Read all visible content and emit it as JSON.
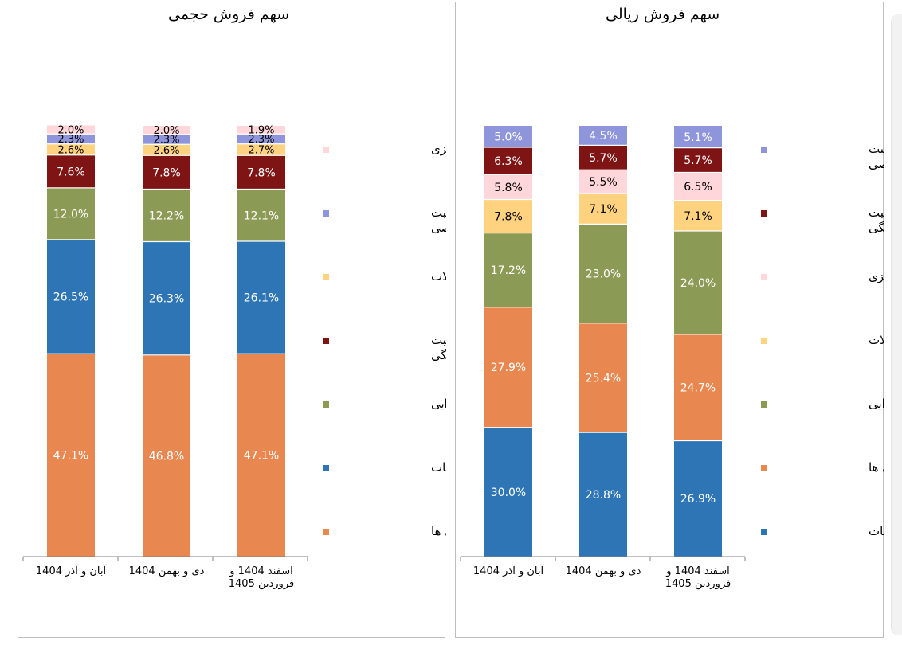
{
  "chart_data": [
    {
      "type": "bar",
      "stacked": true,
      "title": "سهم فروش حجمی",
      "categories": [
        "آبان و آذر 1404",
        "دی و بهمن 1404",
        "اسفند 1404 و فروردین 1405"
      ],
      "ylim": [
        0,
        100
      ],
      "grid": false,
      "legend_position": "right",
      "series": [
        {
          "name": "نوشیدنی ها",
          "color": "#E8874F",
          "values": [
            47.1,
            46.8,
            47.1
          ],
          "labels": [
            "47.1%",
            "46.8%",
            "47.1%"
          ]
        },
        {
          "name": "لبنیات",
          "color": "#2E75B6",
          "values": [
            26.5,
            26.3,
            26.1
          ],
          "labels": [
            "26.5%",
            "26.3%",
            "26.1%"
          ]
        },
        {
          "name": "مواد غذایی",
          "color": "#8B9B56",
          "values": [
            12.0,
            12.2,
            12.1
          ],
          "labels": [
            "12.0%",
            "12.2%",
            "12.1%"
          ]
        },
        {
          "name": "محصولات مراقبت خانگی",
          "color": "#7F1414",
          "values": [
            7.6,
            7.8,
            7.8
          ],
          "labels": [
            "7.6%",
            "7.8%",
            "7.8%"
          ]
        },
        {
          "name": "تنقلات",
          "color": "#FFD27F",
          "values": [
            2.6,
            2.6,
            2.7
          ],
          "labels": [
            "2.6%",
            "2.6%",
            "2.7%"
          ]
        },
        {
          "name": "محصولات مراقبت شخصی",
          "color": "#8E95DB",
          "values": [
            2.3,
            2.3,
            2.3
          ],
          "labels": [
            "2.3%",
            "2.3%",
            "2.3%"
          ]
        },
        {
          "name": "محصولات سلولزی",
          "color": "#FFD6D9",
          "values": [
            2.0,
            2.0,
            1.9
          ],
          "labels": [
            "2.0%",
            "2.0%",
            "1.9%"
          ]
        }
      ],
      "legend": [
        {
          "lines": [
            "محصولات سلولزی"
          ],
          "color": "#FFD6D9"
        },
        {
          "lines": [
            "محصولات مراقبت",
            "شخصی"
          ],
          "color": "#8E95DB"
        },
        {
          "lines": [
            "تنقلات"
          ],
          "color": "#FFD27F"
        },
        {
          "lines": [
            "محصولات مراقبت",
            "خانگی"
          ],
          "color": "#7F1414"
        },
        {
          "lines": [
            "مواد غذایی"
          ],
          "color": "#8B9B56"
        },
        {
          "lines": [
            "لبنیات"
          ],
          "color": "#2E75B6"
        },
        {
          "lines": [
            "نوشیدنی ها"
          ],
          "color": "#E8874F"
        }
      ]
    },
    {
      "type": "bar",
      "stacked": true,
      "title": "سهم فروش ریالی",
      "categories": [
        "آبان و آذر 1404",
        "دی و بهمن 1404",
        "اسفند 1404 و فروردین 1405"
      ],
      "ylim": [
        0,
        100
      ],
      "grid": false,
      "legend_position": "right",
      "series": [
        {
          "name": "لبنیات",
          "color": "#2E75B6",
          "values": [
            30.0,
            28.8,
            26.9
          ],
          "labels": [
            "30.0%",
            "28.8%",
            "26.9%"
          ]
        },
        {
          "name": "نوشیدنی ها",
          "color": "#E8874F",
          "values": [
            27.9,
            25.4,
            24.7
          ],
          "labels": [
            "27.9%",
            "25.4%",
            "24.7%"
          ]
        },
        {
          "name": "مواد غذایی",
          "color": "#8B9B56",
          "values": [
            17.2,
            23.0,
            24.0
          ],
          "labels": [
            "17.2%",
            "23.0%",
            "24.0%"
          ]
        },
        {
          "name": "تنقلات",
          "color": "#FFD27F",
          "values": [
            7.8,
            7.1,
            7.1
          ],
          "labels": [
            "7.8%",
            "7.1%",
            "7.1%"
          ]
        },
        {
          "name": "محصولات سلولزی",
          "color": "#FFD6D9",
          "values": [
            5.8,
            5.5,
            6.5
          ],
          "labels": [
            "5.8%",
            "5.5%",
            "6.5%"
          ]
        },
        {
          "name": "محصولات مراقبت خانگی",
          "color": "#7F1414",
          "values": [
            6.3,
            5.7,
            5.7
          ],
          "labels": [
            "6.3%",
            "5.7%",
            "5.7%"
          ]
        },
        {
          "name": "محصولات مراقبت شخصی",
          "color": "#8E95DB",
          "values": [
            5.0,
            4.5,
            5.1
          ],
          "labels": [
            "5.0%",
            "4.5%",
            "5.1%"
          ]
        }
      ],
      "legend": [
        {
          "lines": [
            "محصولات مراقبت",
            "شخصی"
          ],
          "color": "#8E95DB"
        },
        {
          "lines": [
            "محصولات مراقبت",
            "خانگی"
          ],
          "color": "#7F1414"
        },
        {
          "lines": [
            "محصولات سلولزی"
          ],
          "color": "#FFD6D9"
        },
        {
          "lines": [
            "تنقلات"
          ],
          "color": "#FFD27F"
        },
        {
          "lines": [
            "مواد غذایی"
          ],
          "color": "#8B9B56"
        },
        {
          "lines": [
            "نوشیدنی ها"
          ],
          "color": "#E8874F"
        },
        {
          "lines": [
            "لبنیات"
          ],
          "color": "#2E75B6"
        }
      ]
    }
  ]
}
